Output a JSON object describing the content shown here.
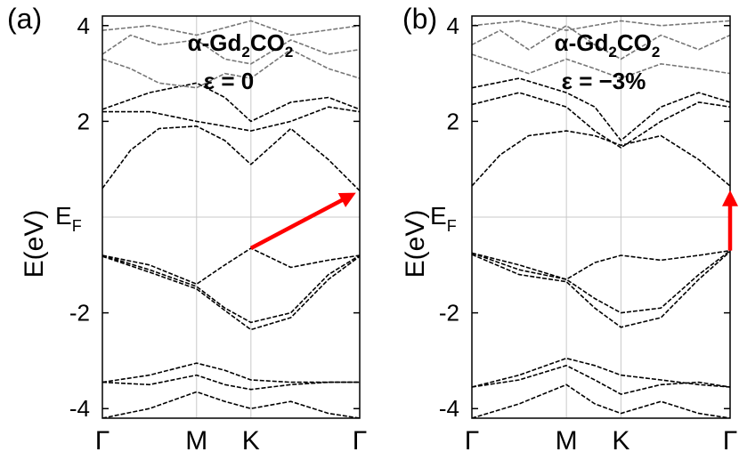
{
  "chart_data": [
    {
      "type": "line",
      "panel_label": "(a)",
      "title_material": "α-Gd",
      "title_sub1": "2",
      "title_mid": "CO",
      "title_sub2": "2",
      "strain_label": "ε = 0",
      "ylabel": "E(eV)",
      "fermi_label": "E",
      "fermi_sub": "F",
      "ylim": [
        -4.2,
        4.2
      ],
      "yticks": [
        -4,
        -2,
        2,
        4
      ],
      "ytick_labels": [
        "-4",
        "-2",
        "2",
        "4"
      ],
      "k_labels": [
        "Γ",
        "M",
        "K",
        "Γ"
      ],
      "k_positions": [
        0,
        1,
        1.577,
        2.732
      ],
      "grid": true,
      "series": [
        {
          "name": "vb1",
          "x": [
            0,
            0.5,
            1,
            1.3,
            1.577,
            2.0,
            2.4,
            2.732
          ],
          "y": [
            -0.8,
            -1.0,
            -1.4,
            -1.0,
            -0.65,
            -1.05,
            -0.9,
            -0.8
          ]
        },
        {
          "name": "vb2",
          "x": [
            0,
            0.5,
            1,
            1.3,
            1.577,
            2.0,
            2.4,
            2.732
          ],
          "y": [
            -0.8,
            -1.1,
            -1.45,
            -1.9,
            -2.2,
            -2.0,
            -1.2,
            -0.8
          ]
        },
        {
          "name": "vb3",
          "x": [
            0,
            0.5,
            1,
            1.3,
            1.577,
            2.0,
            2.4,
            2.732
          ],
          "y": [
            -0.82,
            -1.15,
            -1.5,
            -1.95,
            -2.35,
            -2.1,
            -1.3,
            -0.82
          ]
        },
        {
          "name": "cb1",
          "x": [
            0,
            0.3,
            0.6,
            1,
            1.3,
            1.577,
            2.0,
            2.4,
            2.732
          ],
          "y": [
            0.6,
            1.4,
            1.85,
            1.9,
            1.6,
            1.1,
            1.85,
            1.2,
            0.55
          ]
        },
        {
          "name": "cb2",
          "x": [
            0,
            0.5,
            1,
            1.3,
            1.577,
            2.0,
            2.4,
            2.732
          ],
          "y": [
            2.2,
            2.2,
            2.0,
            1.9,
            1.8,
            2.0,
            2.3,
            2.2
          ]
        },
        {
          "name": "cb3",
          "x": [
            0,
            0.5,
            1,
            1.3,
            1.577,
            2.0,
            2.4,
            2.732
          ],
          "y": [
            2.25,
            2.6,
            2.8,
            2.5,
            2.0,
            2.4,
            2.5,
            2.25
          ]
        },
        {
          "name": "cb4",
          "x": [
            0,
            0.3,
            0.6,
            1,
            1.3,
            1.577,
            2.0,
            2.4,
            2.732
          ],
          "y": [
            3.3,
            3.1,
            2.8,
            2.7,
            3.0,
            2.9,
            3.5,
            3.1,
            2.9
          ]
        },
        {
          "name": "cb5",
          "x": [
            0,
            0.3,
            0.6,
            1,
            1.3,
            1.577,
            2.0,
            2.4,
            2.732
          ],
          "y": [
            3.4,
            3.8,
            3.6,
            3.7,
            3.3,
            3.2,
            3.7,
            3.4,
            3.5
          ]
        },
        {
          "name": "cb6",
          "x": [
            0,
            0.5,
            1,
            1.577,
            2.0,
            2.732
          ],
          "y": [
            3.9,
            4.0,
            3.8,
            4.1,
            3.8,
            4.0
          ]
        },
        {
          "name": "db1",
          "x": [
            0,
            0.5,
            1,
            1.3,
            1.577,
            2.0,
            2.4,
            2.732
          ],
          "y": [
            -3.45,
            -3.3,
            -3.05,
            -3.2,
            -3.4,
            -3.45,
            -3.45,
            -3.45
          ]
        },
        {
          "name": "db2",
          "x": [
            0,
            0.5,
            1,
            1.3,
            1.577,
            2.0,
            2.4,
            2.732
          ],
          "y": [
            -3.45,
            -3.5,
            -3.3,
            -3.5,
            -3.6,
            -3.5,
            -3.45,
            -3.45
          ]
        },
        {
          "name": "db3",
          "x": [
            0,
            0.5,
            1,
            1.3,
            1.577,
            2.0,
            2.4,
            2.732
          ],
          "y": [
            -4.2,
            -4.0,
            -3.65,
            -3.85,
            -4.0,
            -3.85,
            -4.1,
            -4.2
          ]
        }
      ],
      "arrow": {
        "from": [
          1.577,
          -0.65
        ],
        "to": [
          2.732,
          0.55
        ],
        "type": "indirect"
      }
    },
    {
      "type": "line",
      "panel_label": "(b)",
      "title_material": "α-Gd",
      "title_sub1": "2",
      "title_mid": "CO",
      "title_sub2": "2",
      "strain_label": "ε = −3%",
      "ylabel": "E(eV)",
      "fermi_label": "E",
      "fermi_sub": "F",
      "ylim": [
        -4.2,
        4.2
      ],
      "yticks": [
        -4,
        -2,
        2,
        4
      ],
      "ytick_labels": [
        "-4",
        "-2",
        "2",
        "4"
      ],
      "k_labels": [
        "Γ",
        "M",
        "K",
        "Γ"
      ],
      "k_positions": [
        0,
        1,
        1.577,
        2.732
      ],
      "grid": true,
      "series": [
        {
          "name": "vb1",
          "x": [
            0,
            0.5,
            1,
            1.3,
            1.577,
            2.0,
            2.4,
            2.732
          ],
          "y": [
            -0.75,
            -1.0,
            -1.3,
            -0.95,
            -0.8,
            -0.9,
            -0.8,
            -0.7
          ]
        },
        {
          "name": "vb2",
          "x": [
            0,
            0.5,
            1,
            1.3,
            1.577,
            2.0,
            2.4,
            2.732
          ],
          "y": [
            -0.75,
            -1.1,
            -1.3,
            -1.7,
            -2.0,
            -1.9,
            -1.2,
            -0.7
          ]
        },
        {
          "name": "vb3",
          "x": [
            0,
            0.5,
            1,
            1.3,
            1.577,
            2.0,
            2.4,
            2.732
          ],
          "y": [
            -0.78,
            -1.2,
            -1.35,
            -1.9,
            -2.3,
            -2.1,
            -1.3,
            -0.72
          ]
        },
        {
          "name": "cb1",
          "x": [
            0,
            0.3,
            0.6,
            1,
            1.3,
            1.577,
            2.0,
            2.4,
            2.732
          ],
          "y": [
            0.65,
            1.3,
            1.7,
            1.8,
            1.7,
            1.5,
            1.7,
            1.2,
            0.65
          ]
        },
        {
          "name": "cb2",
          "x": [
            0,
            0.5,
            1,
            1.3,
            1.577,
            2.0,
            2.4,
            2.732
          ],
          "y": [
            2.35,
            2.6,
            2.3,
            1.8,
            1.45,
            2.0,
            2.4,
            2.3
          ]
        },
        {
          "name": "cb3",
          "x": [
            0,
            0.5,
            1,
            1.3,
            1.577,
            2.0,
            2.4,
            2.732
          ],
          "y": [
            2.7,
            2.9,
            2.6,
            2.3,
            1.6,
            2.3,
            2.6,
            2.4
          ]
        },
        {
          "name": "cb4",
          "x": [
            0,
            0.3,
            0.6,
            1,
            1.3,
            1.577,
            2.0,
            2.4,
            2.732
          ],
          "y": [
            3.4,
            3.2,
            3.0,
            3.3,
            3.1,
            2.9,
            3.2,
            3.1,
            3.0
          ]
        },
        {
          "name": "cb5",
          "x": [
            0,
            0.3,
            0.6,
            1,
            1.3,
            1.577,
            2.0,
            2.4,
            2.732
          ],
          "y": [
            3.6,
            3.9,
            3.5,
            4.0,
            3.6,
            3.3,
            3.8,
            3.5,
            3.8
          ]
        },
        {
          "name": "cb6",
          "x": [
            0,
            0.5,
            1,
            1.577,
            2.0,
            2.732
          ],
          "y": [
            4.0,
            4.1,
            3.9,
            4.1,
            4.0,
            4.1
          ]
        },
        {
          "name": "db1",
          "x": [
            0,
            0.5,
            1,
            1.3,
            1.577,
            2.0,
            2.4,
            2.732
          ],
          "y": [
            -3.55,
            -3.3,
            -2.95,
            -3.1,
            -3.3,
            -3.4,
            -3.5,
            -3.55
          ]
        },
        {
          "name": "db2",
          "x": [
            0,
            0.5,
            1,
            1.3,
            1.577,
            2.0,
            2.4,
            2.732
          ],
          "y": [
            -3.55,
            -3.4,
            -3.1,
            -3.4,
            -3.7,
            -3.5,
            -3.45,
            -3.55
          ]
        },
        {
          "name": "db3",
          "x": [
            0,
            0.5,
            1,
            1.3,
            1.577,
            2.0,
            2.4,
            2.732
          ],
          "y": [
            -4.2,
            -3.9,
            -3.5,
            -3.9,
            -4.1,
            -3.85,
            -4.1,
            -4.2
          ]
        }
      ],
      "arrow": {
        "from": [
          2.732,
          -0.7
        ],
        "to": [
          2.732,
          0.65
        ],
        "type": "direct"
      }
    }
  ]
}
